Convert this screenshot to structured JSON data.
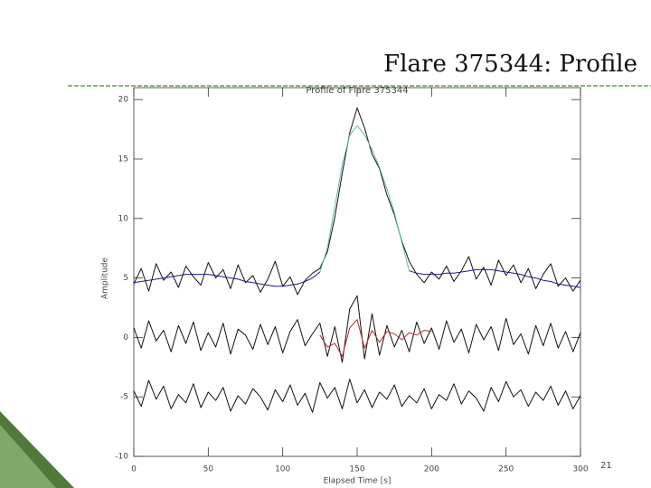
{
  "slide": {
    "title": "Flare 375344: Profile",
    "page_number": 21
  },
  "chart_data": {
    "type": "line",
    "title": "Profile of Flare 375344",
    "xlabel": "Elapsed Time [s]",
    "ylabel": "Amplitude",
    "x": [
      0,
      5,
      10,
      15,
      20,
      25,
      30,
      35,
      40,
      45,
      50,
      55,
      60,
      65,
      70,
      75,
      80,
      85,
      90,
      95,
      100,
      105,
      110,
      115,
      120,
      125,
      130,
      135,
      140,
      145,
      150,
      155,
      160,
      165,
      170,
      175,
      180,
      185,
      190,
      195,
      200,
      205,
      210,
      215,
      220,
      225,
      230,
      235,
      240,
      245,
      250,
      255,
      260,
      265,
      270,
      275,
      280,
      285,
      290,
      295,
      300
    ],
    "xlim": [
      0,
      300
    ],
    "xticks": [
      0,
      50,
      100,
      150,
      200,
      250,
      300
    ],
    "ylim": [
      -10,
      21
    ],
    "yticks": [
      -10,
      -5,
      0,
      5,
      10,
      15,
      20
    ],
    "series": [
      {
        "color": "#111111",
        "values": [
          4.5,
          5.8,
          3.9,
          6.2,
          4.8,
          5.5,
          4.2,
          6.0,
          5.1,
          4.4,
          6.3,
          5.0,
          5.7,
          4.1,
          6.1,
          4.6,
          5.2,
          3.8,
          4.9,
          6.4,
          4.3,
          5.1,
          3.6,
          4.8,
          5.4,
          5.8,
          7.2,
          10.1,
          13.8,
          17.2,
          19.3,
          17.6,
          15.4,
          14.2,
          12.0,
          10.3,
          8.1,
          6.4,
          5.3,
          4.6,
          5.5,
          4.9,
          6.0,
          4.7,
          5.6,
          6.8,
          4.9,
          5.9,
          4.4,
          6.5,
          5.2,
          6.1,
          4.6,
          5.8,
          4.1,
          5.3,
          6.2,
          4.3,
          5.0,
          3.9,
          4.8
        ]
      },
      {
        "color": "#1a1a8c",
        "values": [
          4.6,
          4.7,
          4.8,
          4.9,
          5.0,
          5.1,
          5.2,
          5.3,
          5.3,
          5.3,
          5.3,
          5.2,
          5.1,
          5.0,
          4.9,
          4.7,
          4.6,
          4.5,
          4.4,
          4.3,
          4.3,
          4.4,
          4.5,
          4.7,
          5.0,
          5.5,
          null,
          null,
          null,
          null,
          null,
          null,
          null,
          null,
          null,
          null,
          null,
          5.6,
          5.4,
          5.3,
          5.3,
          5.3,
          5.4,
          5.4,
          5.5,
          5.6,
          5.7,
          5.7,
          5.7,
          5.6,
          5.5,
          5.4,
          5.3,
          5.1,
          5.0,
          4.8,
          4.7,
          4.5,
          4.4,
          4.3,
          4.2
        ]
      },
      {
        "color": "#5fbf9a",
        "values": [
          null,
          null,
          null,
          null,
          null,
          null,
          null,
          null,
          null,
          null,
          null,
          null,
          null,
          null,
          null,
          null,
          null,
          null,
          null,
          null,
          null,
          null,
          null,
          null,
          null,
          5.5,
          7.5,
          11,
          14.5,
          17,
          17.8,
          17,
          15.8,
          14.3,
          12.5,
          10.5,
          8,
          5.6,
          null,
          null,
          null,
          null,
          null,
          null,
          null,
          null,
          null,
          null,
          null,
          null,
          null,
          null,
          null,
          null,
          null,
          null,
          null,
          null,
          null,
          null,
          null
        ]
      },
      {
        "color": "#111111",
        "values": [
          0.8,
          -0.9,
          1.4,
          -0.3,
          0.6,
          -1.2,
          1.0,
          -0.5,
          1.3,
          -1.1,
          0.4,
          -0.8,
          1.2,
          -1.4,
          0.7,
          0.2,
          -1.0,
          1.1,
          -0.6,
          0.9,
          -1.3,
          0.5,
          1.5,
          -0.7,
          0.3,
          1.2,
          -1.6,
          0.9,
          -2.1,
          2.4,
          3.5,
          -1.8,
          2.0,
          -1.5,
          1.0,
          -0.8,
          0.6,
          -1.2,
          1.3,
          -0.5,
          0.8,
          -1.0,
          1.4,
          -0.4,
          0.7,
          -1.3,
          1.1,
          -0.2,
          0.9,
          -1.1,
          1.6,
          -0.6,
          0.3,
          -1.4,
          1.0,
          -0.7,
          1.2,
          -0.9,
          0.5,
          -1.2,
          0.4
        ]
      },
      {
        "color": "#b03030",
        "values": [
          null,
          null,
          null,
          null,
          null,
          null,
          null,
          null,
          null,
          null,
          null,
          null,
          null,
          null,
          null,
          null,
          null,
          null,
          null,
          null,
          null,
          null,
          null,
          null,
          null,
          0.2,
          -0.8,
          -0.5,
          -1.6,
          0.8,
          1.5,
          -0.9,
          0.6,
          -0.4,
          0.5,
          0.3,
          -0.2,
          0.4,
          0.2,
          0.6,
          0.5,
          null,
          null,
          null,
          null,
          null,
          null,
          null,
          null,
          null,
          null,
          null,
          null,
          null,
          null,
          null,
          null,
          null,
          null,
          null,
          null
        ]
      },
      {
        "color": "#111111",
        "values": [
          -4.5,
          -5.8,
          -3.6,
          -5.2,
          -4.1,
          -6.0,
          -4.8,
          -5.5,
          -3.9,
          -5.9,
          -4.6,
          -5.3,
          -4.2,
          -6.2,
          -4.9,
          -5.6,
          -4.3,
          -5.0,
          -6.1,
          -4.4,
          -5.4,
          -4.0,
          -5.7,
          -4.7,
          -6.3,
          -3.8,
          -5.1,
          -4.2,
          -6.0,
          -3.5,
          -5.5,
          -4.4,
          -5.9,
          -4.6,
          -5.2,
          -4.0,
          -5.8,
          -4.9,
          -5.5,
          -4.3,
          -6.0,
          -4.8,
          -5.3,
          -3.9,
          -5.6,
          -4.5,
          -5.1,
          -6.2,
          -4.2,
          -5.4,
          -3.7,
          -5.0,
          -4.4,
          -5.8,
          -4.6,
          -5.3,
          -4.1,
          -5.7,
          -4.5,
          -6.0,
          -4.9
        ]
      }
    ]
  }
}
